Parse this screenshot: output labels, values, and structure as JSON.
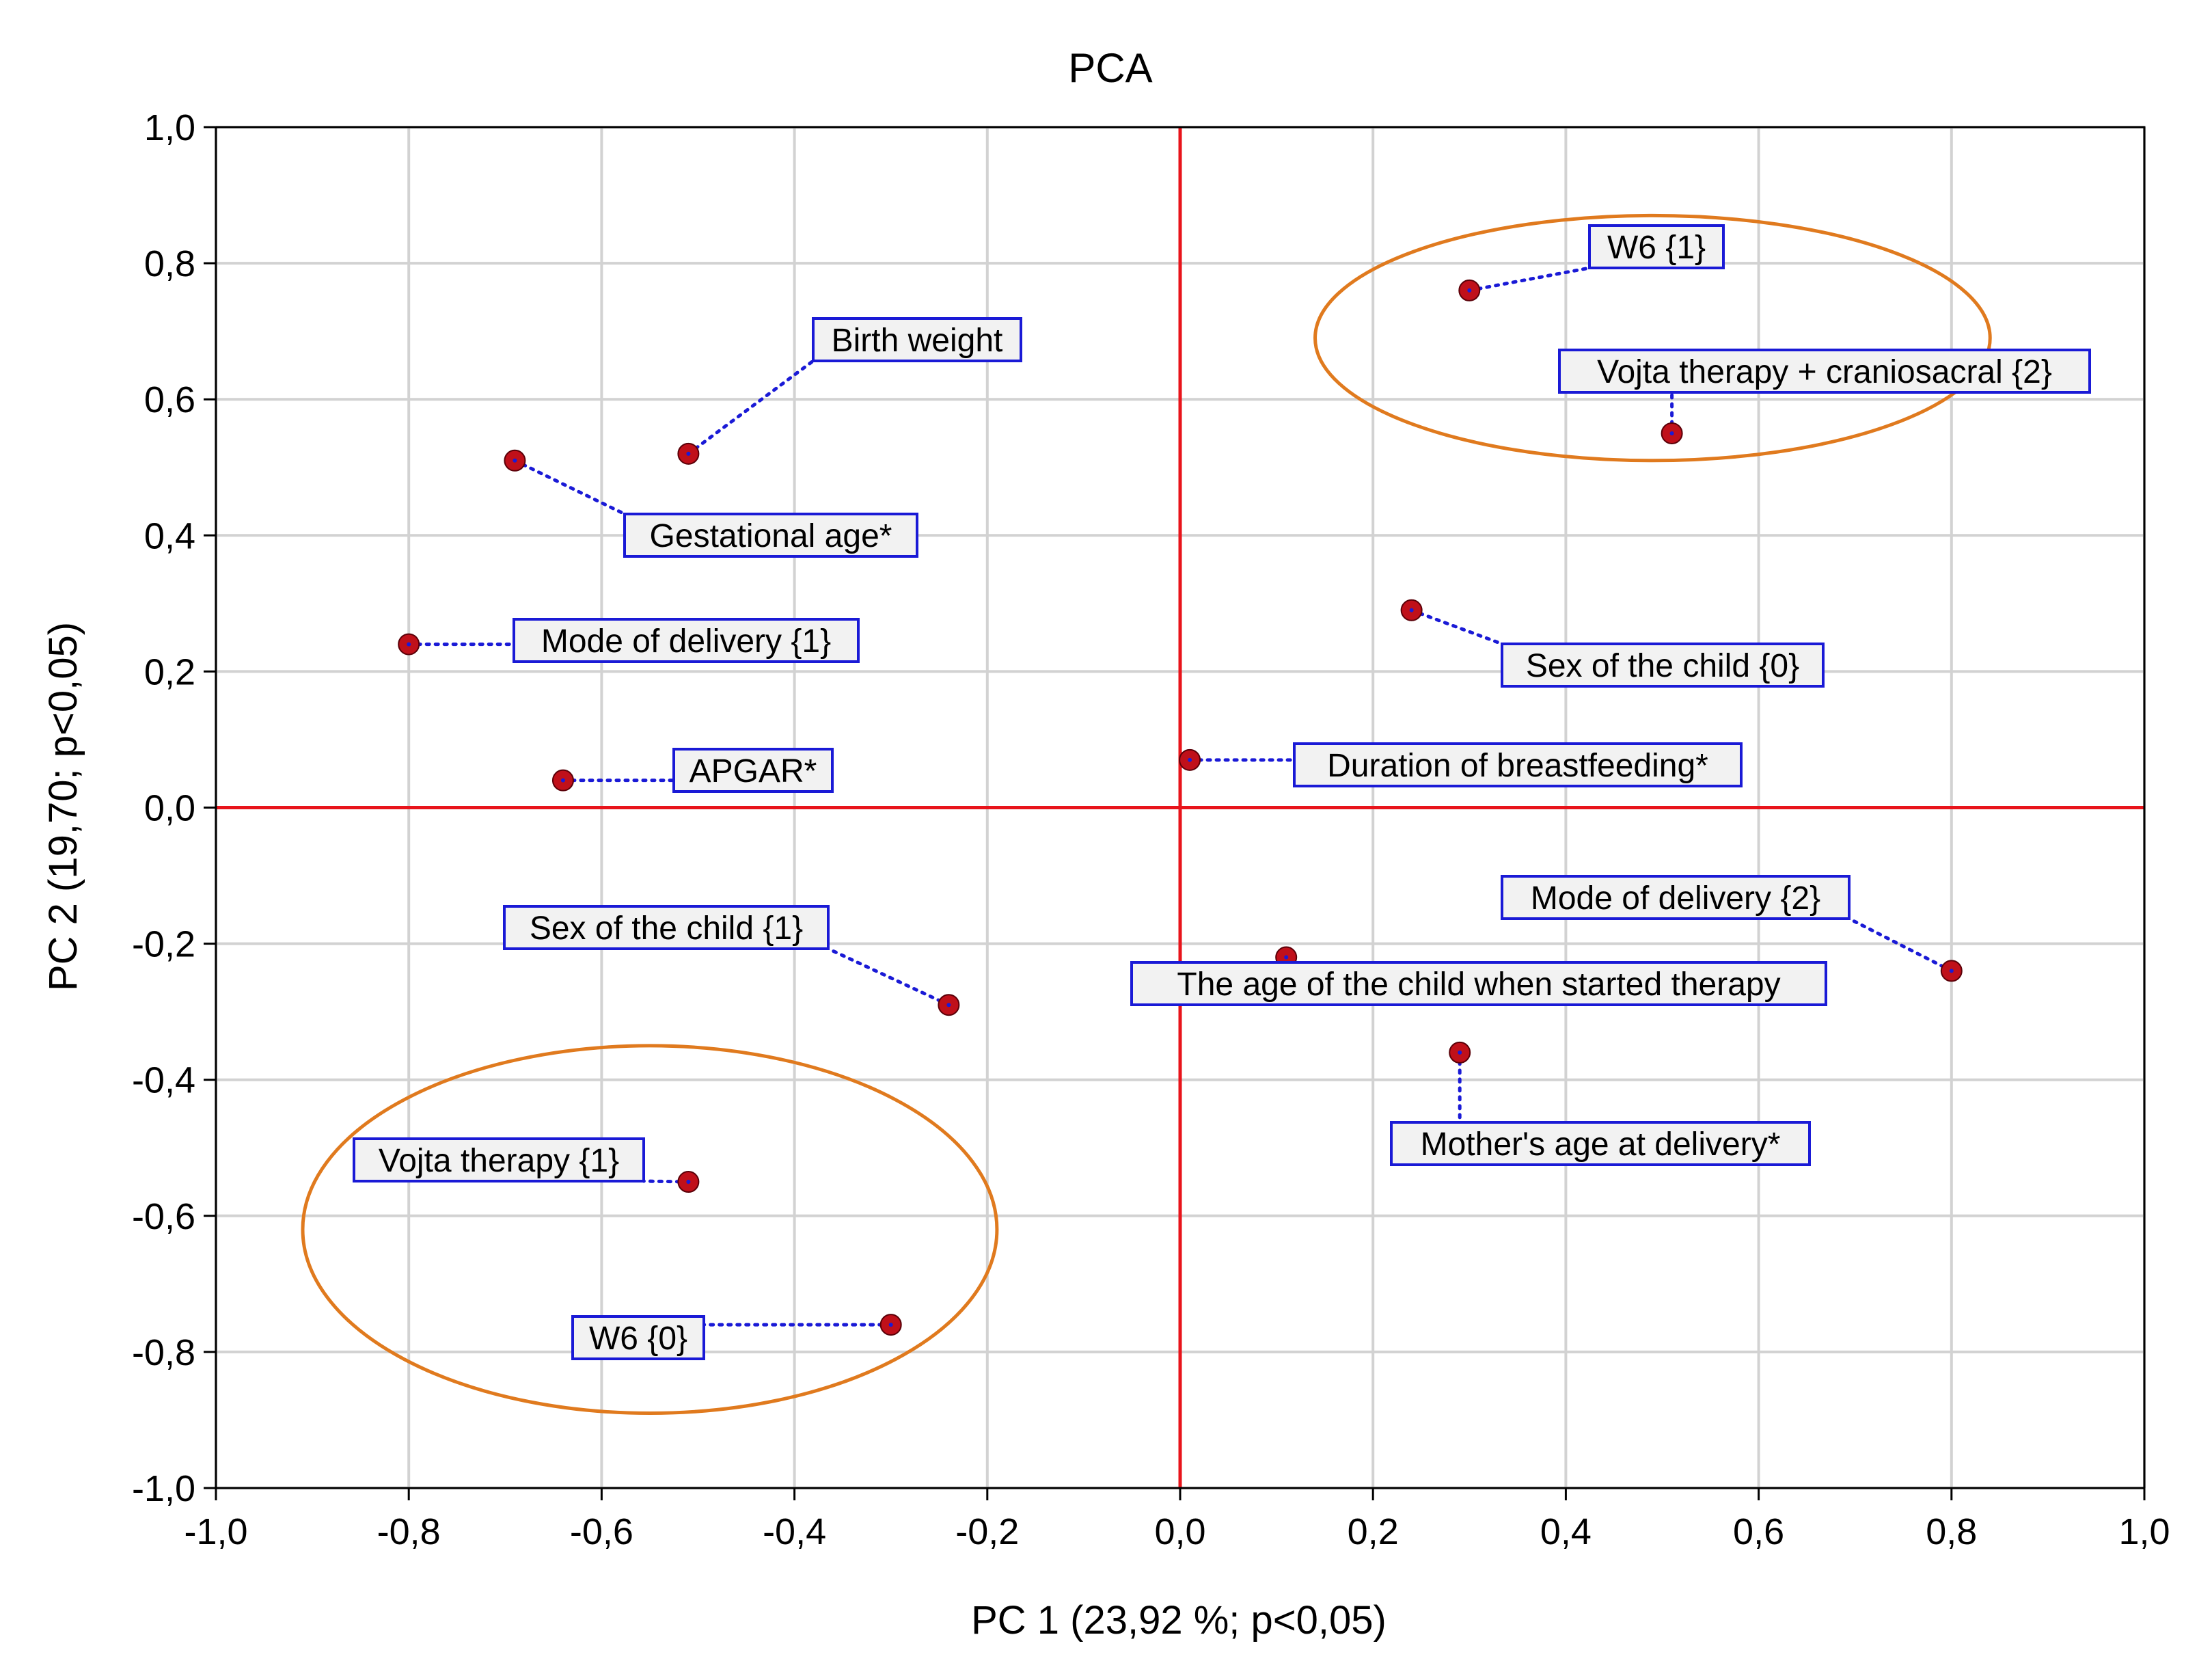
{
  "chart_data": {
    "type": "scatter",
    "title": "PCA",
    "xlabel": "PC 1 (23,92 %; p<0,05)",
    "ylabel": "PC 2 (19,70; p<0,05)",
    "xlim": [
      -1.0,
      1.0
    ],
    "ylim": [
      -1.0,
      1.0
    ],
    "x_ticks": [
      -1.0,
      -0.8,
      -0.6,
      -0.4,
      -0.2,
      0.0,
      0.2,
      0.4,
      0.6,
      0.8,
      1.0
    ],
    "y_ticks": [
      -1.0,
      -0.8,
      -0.6,
      -0.4,
      -0.2,
      0.0,
      0.2,
      0.4,
      0.6,
      0.8,
      1.0
    ],
    "x_tick_labels": [
      "-1,0",
      "-0,8",
      "-0,6",
      "-0,4",
      "-0,2",
      "0,0",
      "0,2",
      "0,4",
      "0,6",
      "0,8",
      "1,0"
    ],
    "y_tick_labels": [
      "-1,0",
      "-0,8",
      "-0,6",
      "-0,4",
      "-0,2",
      "0,0",
      "0,2",
      "0,4",
      "0,6",
      "0,8",
      "1,0"
    ],
    "grid": true,
    "reference_lines": {
      "x": 0.0,
      "y": 0.0,
      "color": "#e8141b"
    },
    "point_color": "#c0101a",
    "label_border_color": "#1a1ad6",
    "leader_color": "#1a1ad6",
    "ellipse_color": "#e07a1e",
    "points": [
      {
        "label": "W6 {1}",
        "x": 0.3,
        "y": 0.76
      },
      {
        "label": "Vojta therapy + craniosacral {2}",
        "x": 0.51,
        "y": 0.55
      },
      {
        "label": "Birth weight",
        "x": -0.51,
        "y": 0.52
      },
      {
        "label": "Gestational age*",
        "x": -0.69,
        "y": 0.51
      },
      {
        "label": "Mode of delivery {1}",
        "x": -0.8,
        "y": 0.24
      },
      {
        "label": "APGAR*",
        "x": -0.64,
        "y": 0.04
      },
      {
        "label": "Sex of the child {0}",
        "x": 0.24,
        "y": 0.29
      },
      {
        "label": "Duration of breastfeeding*",
        "x": 0.01,
        "y": 0.07
      },
      {
        "label": "Mode of delivery {2}",
        "x": 0.8,
        "y": -0.24
      },
      {
        "label": "Sex of the child {1}",
        "x": -0.24,
        "y": -0.29
      },
      {
        "label": "The age of the child when started therapy",
        "x": 0.11,
        "y": -0.22
      },
      {
        "label": "Mother's age at delivery*",
        "x": 0.29,
        "y": -0.36
      },
      {
        "label": "Vojta therapy {1}",
        "x": -0.51,
        "y": -0.55
      },
      {
        "label": "W6 {0}",
        "x": -0.3,
        "y": -0.76
      }
    ],
    "ellipses": [
      {
        "cx": 0.49,
        "cy": 0.69,
        "rx": 0.35,
        "ry": 0.18
      },
      {
        "cx": -0.55,
        "cy": -0.62,
        "rx": 0.36,
        "ry": 0.27
      }
    ]
  }
}
